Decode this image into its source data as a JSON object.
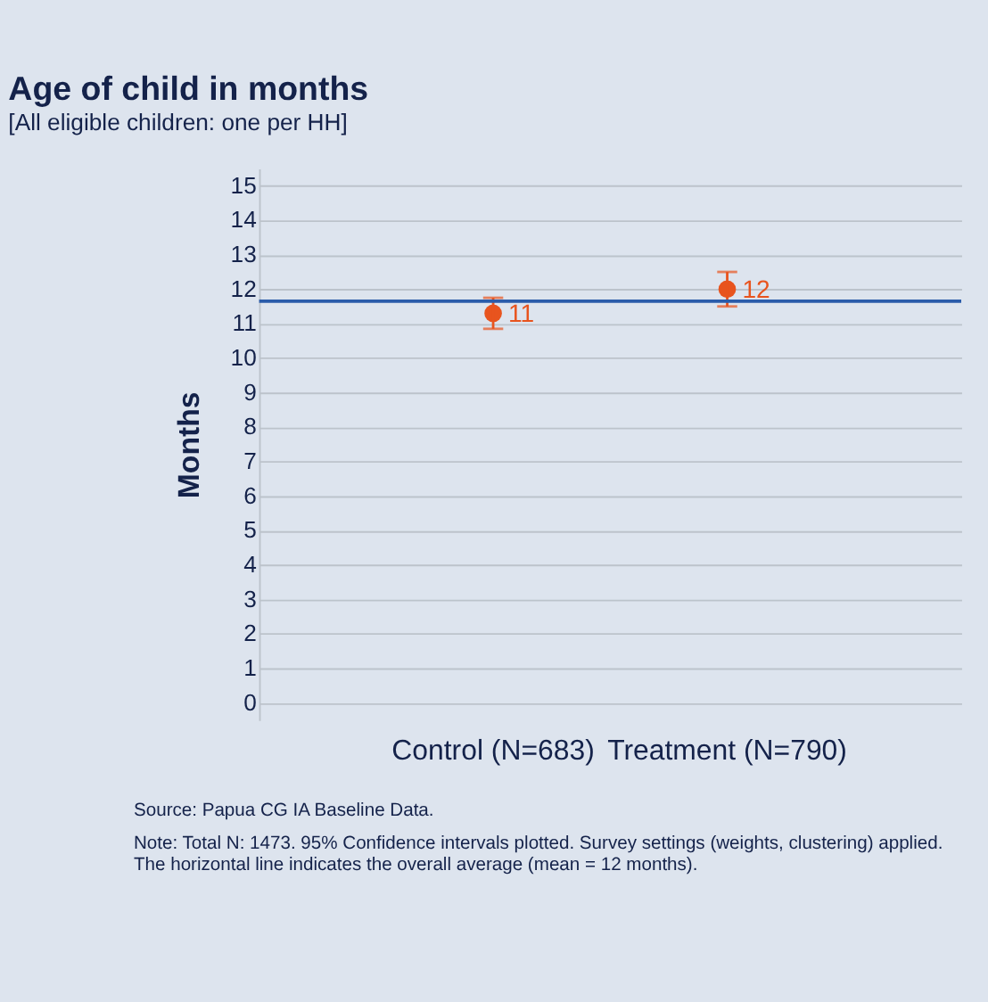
{
  "chart_data": {
    "type": "scatter",
    "title": "Age of child in months",
    "subtitle": "[All eligible children: one per HH]",
    "ylabel": "Months",
    "categories": [
      "Control (N=683)",
      "Treatment (N=790)"
    ],
    "values": [
      11.3,
      12.0
    ],
    "errors": [
      [
        10.85,
        11.75
      ],
      [
        11.5,
        12.5
      ]
    ],
    "value_labels": [
      "11",
      "12"
    ],
    "color": "#e8541e",
    "marker": "circle",
    "ylim": [
      -0.5,
      15.5
    ],
    "yticks": [
      0,
      1,
      2,
      3,
      4,
      5,
      6,
      7,
      8,
      9,
      10,
      11,
      12,
      13,
      14,
      15
    ],
    "grid": "y",
    "ref_lines": [
      {
        "axis": "y",
        "value": 11.65,
        "color": "#2a5caa"
      }
    ],
    "annotations": [
      "Source: Papua CG IA Baseline Data.",
      "Note: Total N: 1473. 95% Confidence intervals plotted. Survey settings (weights, clustering) applied.\nThe horizontal line indicates the overall average (mean = 12 months)."
    ]
  }
}
